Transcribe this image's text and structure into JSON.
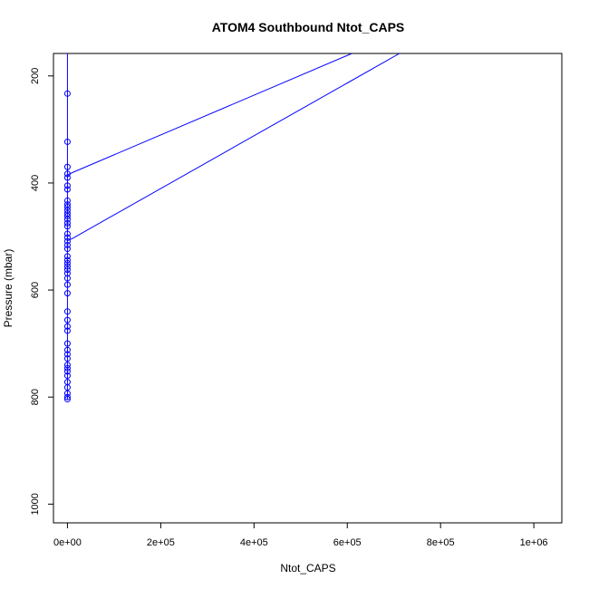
{
  "chart_data": {
    "type": "scatter",
    "title": "ATOM4 Southbound Ntot_CAPS",
    "xlabel": "Ntot_CAPS",
    "ylabel": "Pressure (mbar)",
    "xlim": [
      -30000,
      1060000
    ],
    "ylim": [
      1035,
      158
    ],
    "y_reversed": true,
    "x_ticks": [
      0,
      200000,
      400000,
      600000,
      800000,
      1000000
    ],
    "x_tick_labels": [
      "0e+00",
      "2e+05",
      "4e+05",
      "6e+05",
      "8e+05",
      "1e+06"
    ],
    "y_ticks": [
      200,
      400,
      600,
      800,
      1000
    ],
    "y_tick_labels": [
      "200",
      "400",
      "600",
      "800",
      "1000"
    ],
    "series_color": "#0000ff",
    "grid": false,
    "points": [
      [
        0,
        233
      ],
      [
        0,
        323
      ],
      [
        0,
        370
      ],
      [
        0,
        383
      ],
      [
        0,
        390
      ],
      [
        0,
        405
      ],
      [
        0,
        412
      ],
      [
        0,
        433
      ],
      [
        0,
        440
      ],
      [
        0,
        445
      ],
      [
        0,
        451
      ],
      [
        0,
        457
      ],
      [
        0,
        462
      ],
      [
        0,
        468
      ],
      [
        0,
        475
      ],
      [
        0,
        481
      ],
      [
        0,
        495
      ],
      [
        0,
        502
      ],
      [
        0,
        509
      ],
      [
        0,
        516
      ],
      [
        0,
        523
      ],
      [
        0,
        537
      ],
      [
        0,
        544
      ],
      [
        0,
        550
      ],
      [
        0,
        556
      ],
      [
        0,
        562
      ],
      [
        0,
        569
      ],
      [
        0,
        578
      ],
      [
        0,
        590
      ],
      [
        0,
        606
      ],
      [
        0,
        640
      ],
      [
        0,
        656
      ],
      [
        0,
        668
      ],
      [
        0,
        676
      ],
      [
        0,
        700
      ],
      [
        0,
        712
      ],
      [
        0,
        720
      ],
      [
        0,
        728
      ],
      [
        0,
        740
      ],
      [
        0,
        746
      ],
      [
        0,
        752
      ],
      [
        0,
        760
      ],
      [
        0,
        772
      ],
      [
        0,
        782
      ],
      [
        0,
        793
      ],
      [
        0,
        800
      ],
      [
        0,
        804
      ]
    ],
    "lines": [
      [
        [
          0,
          158
        ],
        [
          0,
          804
        ]
      ],
      [
        [
          0,
          385
        ],
        [
          12000,
          380
        ],
        [
          610000,
          158
        ]
      ],
      [
        [
          0,
          508
        ],
        [
          12000,
          503
        ],
        [
          712000,
          158
        ]
      ]
    ]
  }
}
